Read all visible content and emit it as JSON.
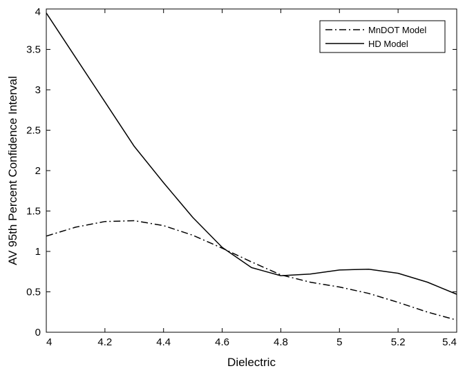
{
  "chart_data": {
    "type": "line",
    "xlabel": "Dielectric",
    "ylabel": "AV 95th Percent Confidence Interval",
    "xlim": [
      4,
      5.4
    ],
    "ylim": [
      0,
      4
    ],
    "x_ticks": [
      "4",
      "4.2",
      "4.4",
      "4.6",
      "4.8",
      "5",
      "5.2",
      "5.4"
    ],
    "y_ticks": [
      "0",
      "0.5",
      "1",
      "1.5",
      "2",
      "2.5",
      "3",
      "3.5",
      "4"
    ],
    "grid": false,
    "legend_position": "top-right",
    "series": [
      {
        "name": "MnDOT Model",
        "line_style": "dash-dot",
        "color": "#000000",
        "x": [
          4.0,
          4.1,
          4.2,
          4.3,
          4.4,
          4.5,
          4.6,
          4.7,
          4.8,
          4.9,
          5.0,
          5.1,
          5.2,
          5.3,
          5.4
        ],
        "y": [
          1.19,
          1.3,
          1.37,
          1.38,
          1.32,
          1.2,
          1.04,
          0.87,
          0.71,
          0.62,
          0.56,
          0.48,
          0.37,
          0.25,
          0.15
        ]
      },
      {
        "name": "HD Model",
        "line_style": "solid",
        "color": "#000000",
        "x": [
          4.0,
          4.1,
          4.2,
          4.3,
          4.4,
          4.5,
          4.6,
          4.7,
          4.8,
          4.9,
          5.0,
          5.1,
          5.2,
          5.3,
          5.4
        ],
        "y": [
          3.95,
          3.4,
          2.85,
          2.3,
          1.85,
          1.42,
          1.05,
          0.8,
          0.7,
          0.72,
          0.77,
          0.78,
          0.73,
          0.62,
          0.47
        ]
      }
    ]
  }
}
